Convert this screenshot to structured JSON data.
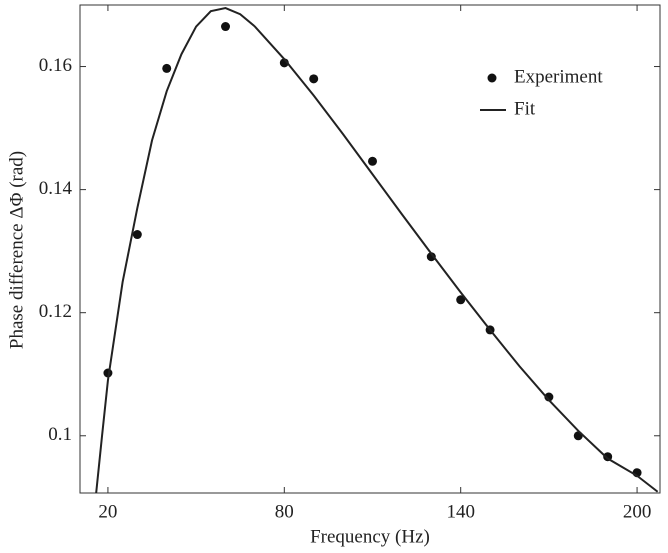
{
  "chart_data": {
    "type": "scatter",
    "xlabel": "Frequency (Hz)",
    "ylabel": "Phase difference ΔΦ (rad)",
    "xlim": [
      10.5,
      207.8
    ],
    "ylim": [
      0.0907,
      0.17
    ],
    "xticks": [
      20,
      80,
      140,
      200
    ],
    "yticks": [
      0.1,
      0.12,
      0.14,
      0.16
    ],
    "legend": "upper right",
    "series": [
      {
        "name": "Experiment",
        "type": "scatter",
        "color": "#111111",
        "x": [
          20,
          30,
          40,
          60,
          80,
          90,
          110,
          130,
          140,
          150,
          170,
          180,
          190,
          200
        ],
        "values": [
          0.1102,
          0.1327,
          0.1597,
          0.1665,
          0.1606,
          0.158,
          0.1446,
          0.1291,
          0.1221,
          0.1172,
          0.1063,
          0.1,
          0.0966,
          0.094
        ]
      },
      {
        "name": "Fit",
        "type": "line",
        "color": "#222222",
        "x": [
          16,
          18,
          20,
          25,
          30,
          35,
          40,
          45,
          50,
          55,
          60,
          65,
          70,
          80,
          90,
          100,
          110,
          120,
          130,
          140,
          150,
          160,
          170,
          180,
          190,
          200,
          207
        ],
        "values": [
          0.0907,
          0.1,
          0.109,
          0.125,
          0.137,
          0.148,
          0.156,
          0.162,
          0.1665,
          0.169,
          0.1695,
          0.1685,
          0.1665,
          0.1612,
          0.1553,
          0.149,
          0.1425,
          0.136,
          0.1296,
          0.1233,
          0.1172,
          0.1113,
          0.1058,
          0.1008,
          0.0963,
          0.0935,
          0.0909
        ]
      }
    ]
  }
}
